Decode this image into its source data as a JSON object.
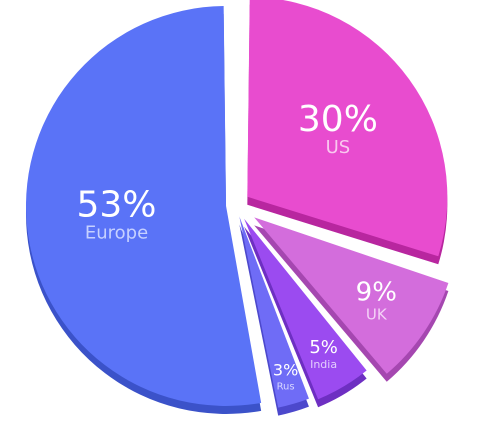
{
  "chart_data": {
    "type": "pie",
    "title": "",
    "slices": [
      {
        "label": "US",
        "value": 30,
        "display": "30%",
        "color": "#e84ccf",
        "side": "#b8269f",
        "label_color": "#f9c8ef"
      },
      {
        "label": "UK",
        "value": 9,
        "display": "9%",
        "color": "#d36ddc",
        "side": "#a547b0",
        "label_color": "#f4d2f7"
      },
      {
        "label": "India",
        "value": 5,
        "display": "5%",
        "color": "#9b4bf0",
        "side": "#6e2fc2",
        "label_color": "#e3cdfd"
      },
      {
        "label": "Rus",
        "value": 3,
        "display": "3%",
        "color": "#6f6cf6",
        "side": "#4c48cc",
        "label_color": "#d7d7ff"
      },
      {
        "label": "Europe",
        "value": 53,
        "display": "53%",
        "color": "#5a73f7",
        "side": "#3b52c9",
        "label_color": "#c6d1ff"
      }
    ]
  }
}
